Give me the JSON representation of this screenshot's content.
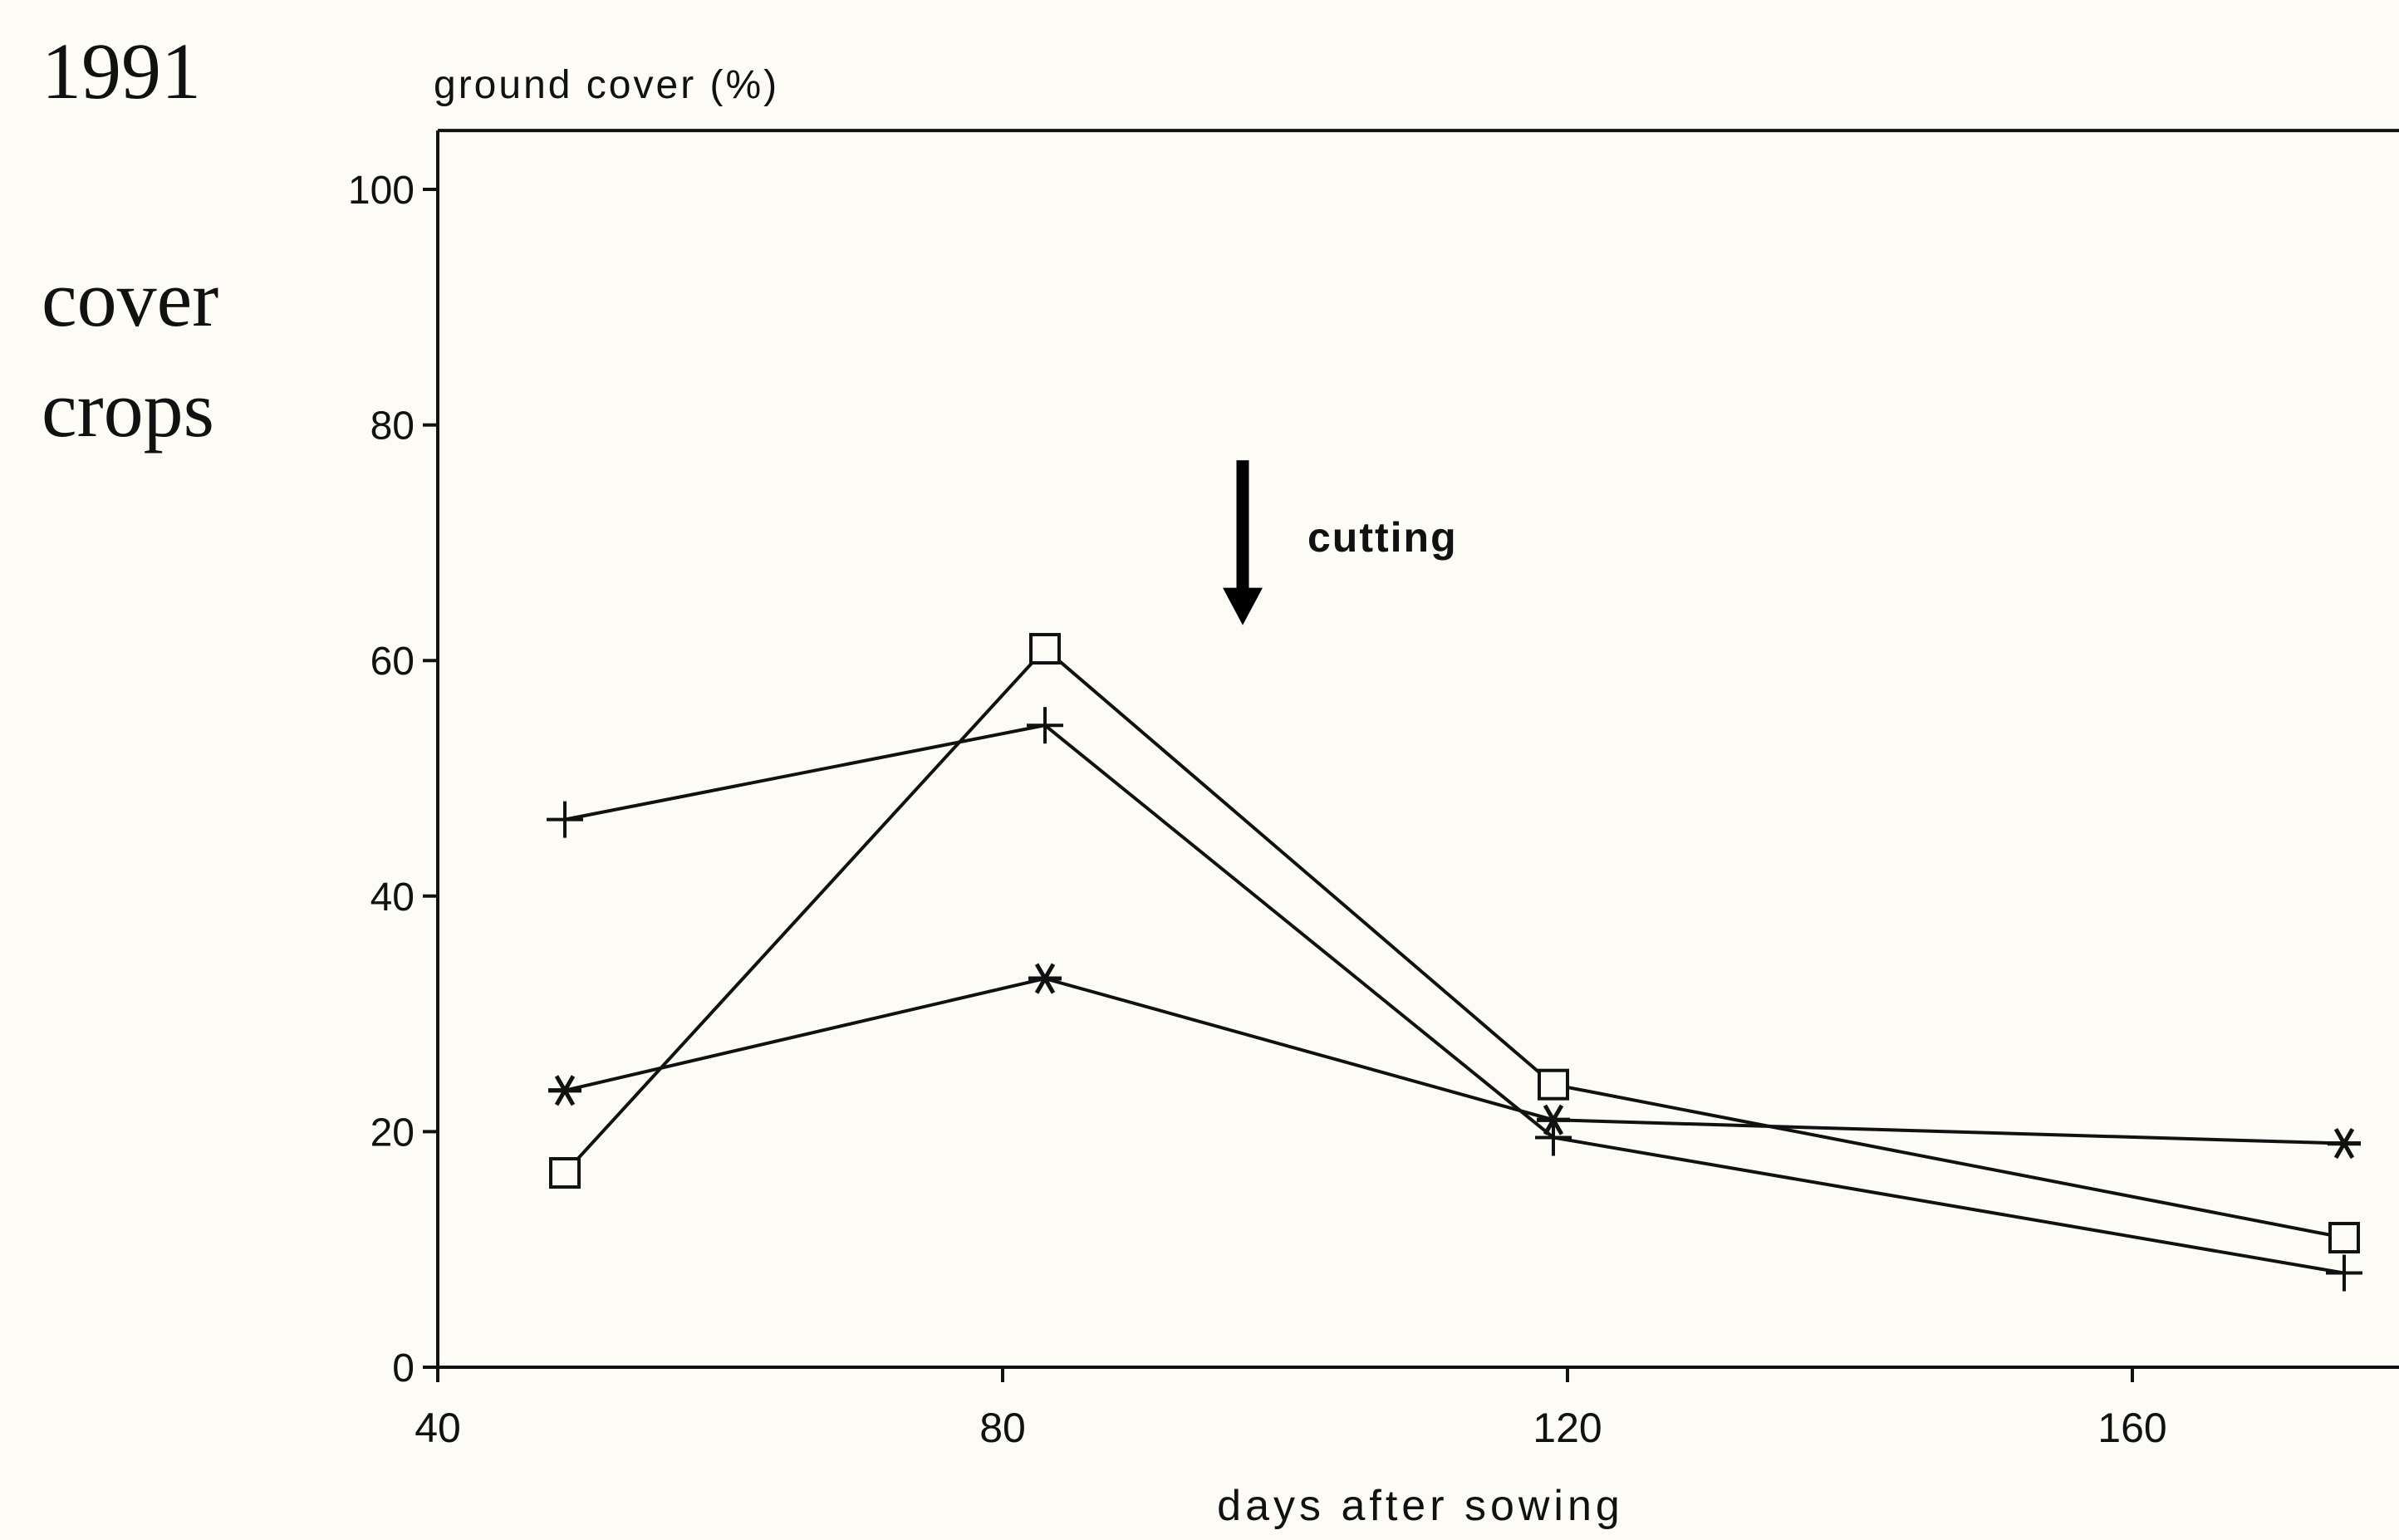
{
  "panel": {
    "year": "1991",
    "label_line1": "cover",
    "label_line2": "crops"
  },
  "chart_data": {
    "type": "line",
    "ylabel": "ground cover (%)",
    "xlabel": "days after sowing",
    "xlim": [
      40,
      178
    ],
    "ylim": [
      0,
      105
    ],
    "x_ticks": [
      40,
      80,
      120,
      160
    ],
    "y_ticks": [
      0,
      20,
      40,
      60,
      80,
      100
    ],
    "grid": false,
    "legend": "none",
    "annotation": {
      "text": "cutting",
      "x": 97,
      "y_from": 77,
      "y_to": 63
    },
    "series": [
      {
        "marker": "square",
        "x": [
          49,
          83,
          119,
          175
        ],
        "y": [
          16.5,
          61,
          24,
          11
        ]
      },
      {
        "marker": "plus",
        "x": [
          49,
          83,
          119,
          175
        ],
        "y": [
          46.5,
          54.5,
          19.5,
          8
        ]
      },
      {
        "marker": "asterisk",
        "x": [
          49,
          83,
          119,
          175
        ],
        "y": [
          23.5,
          33,
          21,
          19
        ]
      }
    ]
  }
}
